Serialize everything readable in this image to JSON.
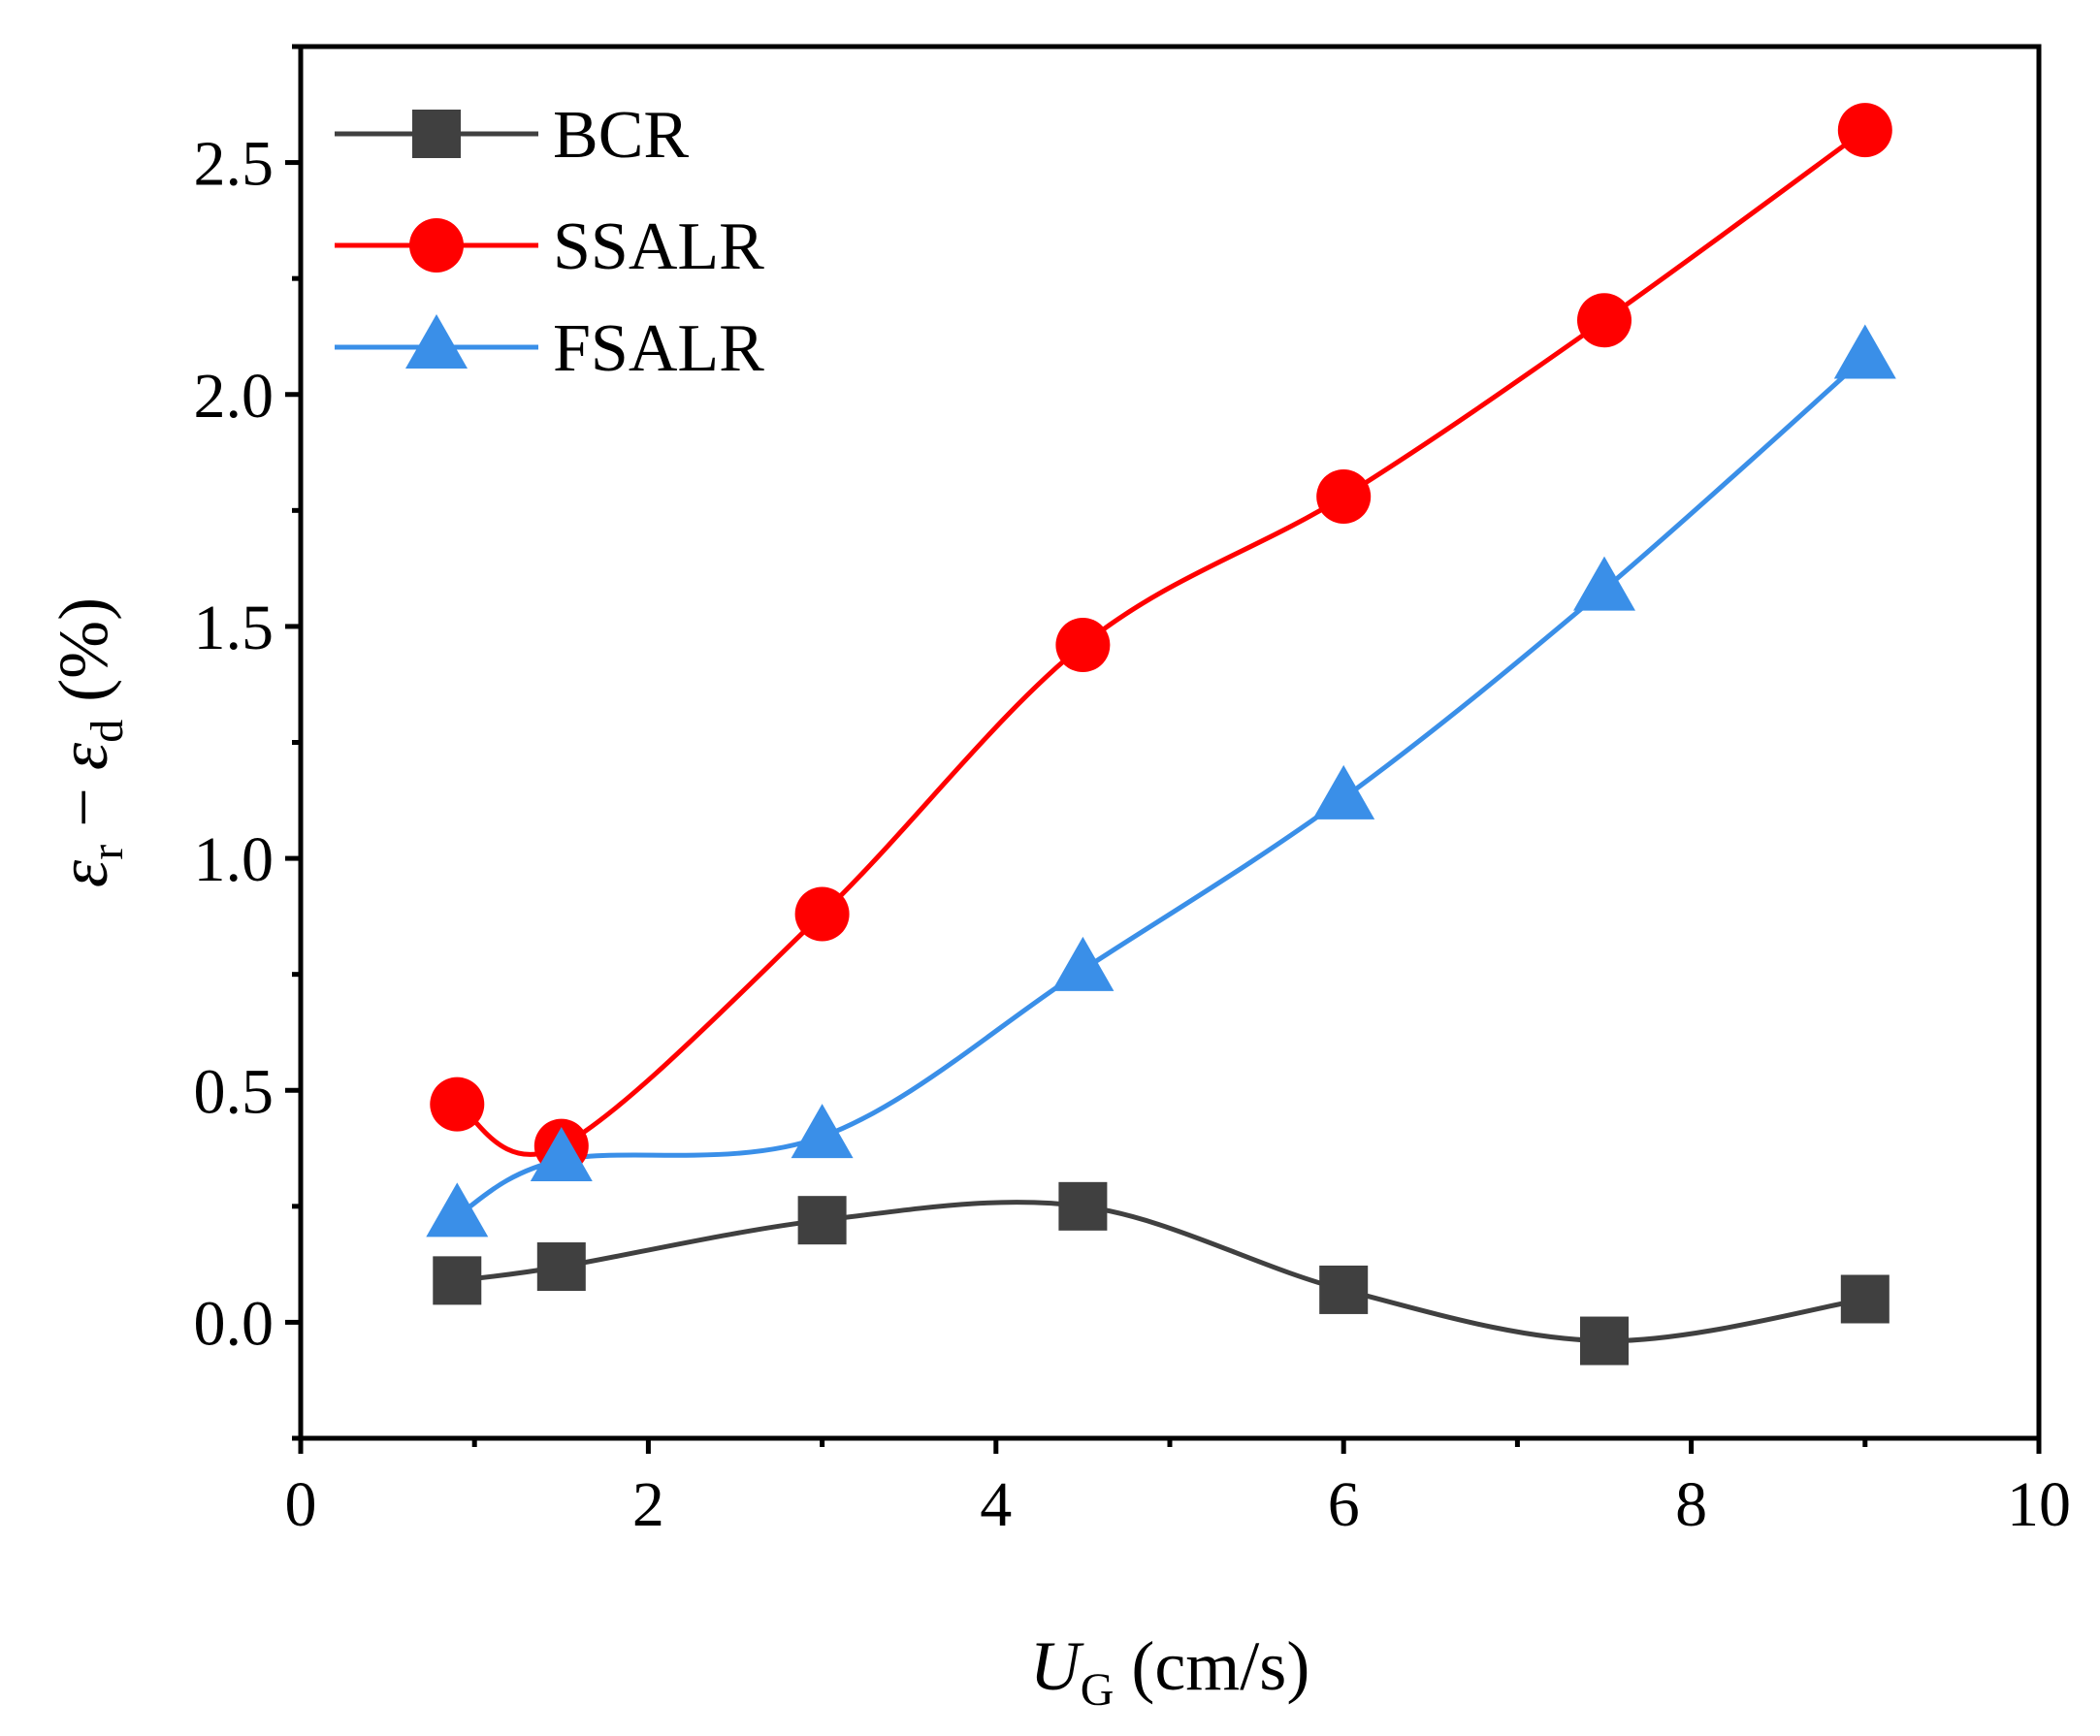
{
  "chart_data": {
    "type": "line",
    "title": "",
    "xlabel": {
      "var": "U",
      "sub": "G",
      "unit": " (cm/s)"
    },
    "ylabel": {
      "a": "ε",
      "a_sub": "r",
      "op": " − ",
      "b": "ε",
      "b_sub": "d",
      "unit": " (%)"
    },
    "xlim": [
      0,
      10
    ],
    "ylim": [
      -0.25,
      2.75
    ],
    "xticks": [
      0,
      2,
      4,
      6,
      8,
      10
    ],
    "xtick_labels": [
      "0",
      "2",
      "4",
      "6",
      "8",
      "10"
    ],
    "yticks": [
      0.0,
      0.5,
      1.0,
      1.5,
      2.0,
      2.5
    ],
    "ytick_labels": [
      "0.0",
      "0.5",
      "1.0",
      "1.5",
      "2.0",
      "2.5"
    ],
    "legend_position": "top-left",
    "grid": false,
    "series": [
      {
        "name": "BCR",
        "marker": "square",
        "color": "#404040",
        "x": [
          0.9,
          1.5,
          3.0,
          4.5,
          6.0,
          7.5,
          9.0
        ],
        "y": [
          0.09,
          0.12,
          0.22,
          0.25,
          0.07,
          -0.04,
          0.05
        ]
      },
      {
        "name": "SSALR",
        "marker": "circle",
        "color": "#ff0000",
        "x": [
          0.9,
          1.5,
          3.0,
          4.5,
          6.0,
          7.5,
          9.0
        ],
        "y": [
          0.47,
          0.38,
          0.88,
          1.46,
          1.78,
          2.16,
          2.57
        ]
      },
      {
        "name": "FSALR",
        "marker": "triangle",
        "color": "#3a8fe8",
        "x": [
          0.9,
          1.5,
          3.0,
          4.5,
          6.0,
          7.5,
          9.0
        ],
        "y": [
          0.23,
          0.35,
          0.4,
          0.76,
          1.13,
          1.58,
          2.08
        ]
      }
    ]
  }
}
